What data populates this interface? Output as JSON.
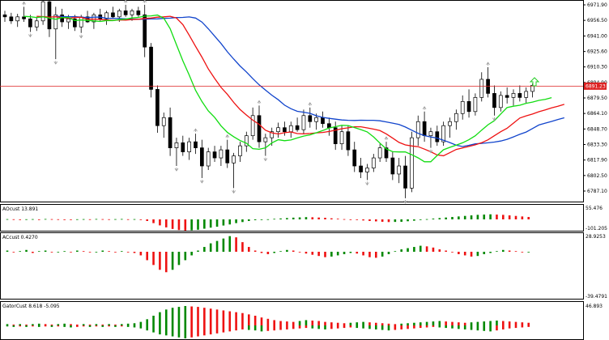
{
  "price_axis": {
    "labels": [
      "6971.90",
      "6956.50",
      "6941.00",
      "6925.60",
      "6910.30",
      "6894.90",
      "6879.50",
      "6864.10",
      "6848.70",
      "6833.30",
      "6817.90",
      "6802.50",
      "6787.10"
    ],
    "current_price": "6891.23",
    "current_price_color": "#dd2222"
  },
  "panels": {
    "ao": {
      "title": "AOcust 13.891",
      "axis_labels": [
        "55.476",
        "-101.205"
      ]
    },
    "ac": {
      "title": "ACcust 0.4270",
      "axis_labels": [
        "28.9253",
        "-39.4791"
      ]
    },
    "gator": {
      "title": "GatorCust 8.618 -5.095",
      "axis_labels": [
        "46.893"
      ]
    }
  },
  "colors": {
    "bullish": "#008800",
    "bearish": "#ee1111",
    "jaw": "#1144cc",
    "teeth": "#ee1111",
    "lips": "#11dd11",
    "price_line": "#dd2222",
    "arrow": "#22cc22",
    "fractal": "#9a9a9a"
  },
  "icons": {
    "buy_arrow": "up-arrow-icon",
    "fractal": "fractal-icon"
  },
  "chart_data": {
    "type": "candlestick",
    "ylim": [
      6780,
      6980
    ],
    "candles": [
      [
        6962,
        6966,
        6955,
        6960
      ],
      [
        6960,
        6964,
        6953,
        6956
      ],
      [
        6956,
        6963,
        6950,
        6960
      ],
      [
        6960,
        6970,
        6955,
        6958
      ],
      [
        6958,
        6962,
        6945,
        6950
      ],
      [
        6950,
        6960,
        6946,
        6956
      ],
      [
        6956,
        6980,
        6952,
        6975
      ],
      [
        6975,
        6980,
        6940,
        6948
      ],
      [
        6948,
        6970,
        6918,
        6962
      ],
      [
        6962,
        6968,
        6950,
        6955
      ],
      [
        6955,
        6962,
        6948,
        6958
      ],
      [
        6958,
        6962,
        6946,
        6950
      ],
      [
        6950,
        6962,
        6944,
        6960
      ],
      [
        6960,
        6966,
        6954,
        6955
      ],
      [
        6955,
        6964,
        6948,
        6962
      ],
      [
        6962,
        6968,
        6955,
        6958
      ],
      [
        6958,
        6966,
        6952,
        6964
      ],
      [
        6964,
        6970,
        6958,
        6960
      ],
      [
        6960,
        6968,
        6955,
        6966
      ],
      [
        6966,
        6972,
        6960,
        6962
      ],
      [
        6962,
        6968,
        6956,
        6966
      ],
      [
        6966,
        6970,
        6960,
        6962
      ],
      [
        6962,
        6972,
        6920,
        6930
      ],
      [
        6930,
        6934,
        6880,
        6888
      ],
      [
        6888,
        6892,
        6845,
        6852
      ],
      [
        6852,
        6865,
        6840,
        6860
      ],
      [
        6860,
        6870,
        6822,
        6830
      ],
      [
        6830,
        6840,
        6812,
        6835
      ],
      [
        6835,
        6842,
        6822,
        6826
      ],
      [
        6826,
        6840,
        6818,
        6836
      ],
      [
        6836,
        6844,
        6824,
        6830
      ],
      [
        6830,
        6838,
        6800,
        6812
      ],
      [
        6812,
        6830,
        6808,
        6826
      ],
      [
        6826,
        6832,
        6816,
        6820
      ],
      [
        6820,
        6832,
        6812,
        6828
      ],
      [
        6828,
        6838,
        6810,
        6815
      ],
      [
        6815,
        6825,
        6790,
        6822
      ],
      [
        6822,
        6836,
        6816,
        6832
      ],
      [
        6832,
        6846,
        6826,
        6842
      ],
      [
        6842,
        6870,
        6838,
        6862
      ],
      [
        6862,
        6872,
        6830,
        6836
      ],
      [
        6836,
        6844,
        6822,
        6840
      ],
      [
        6840,
        6850,
        6832,
        6846
      ],
      [
        6846,
        6855,
        6840,
        6850
      ],
      [
        6850,
        6856,
        6842,
        6846
      ],
      [
        6846,
        6856,
        6840,
        6852
      ],
      [
        6852,
        6860,
        6846,
        6848
      ],
      [
        6848,
        6868,
        6844,
        6862
      ],
      [
        6862,
        6870,
        6850,
        6856
      ],
      [
        6856,
        6864,
        6848,
        6860
      ],
      [
        6860,
        6866,
        6850,
        6854
      ],
      [
        6854,
        6860,
        6842,
        6850
      ],
      [
        6850,
        6856,
        6828,
        6834
      ],
      [
        6834,
        6852,
        6828,
        6846
      ],
      [
        6846,
        6852,
        6822,
        6828
      ],
      [
        6828,
        6836,
        6806,
        6812
      ],
      [
        6812,
        6820,
        6800,
        6806
      ],
      [
        6806,
        6814,
        6798,
        6810
      ],
      [
        6810,
        6824,
        6806,
        6820
      ],
      [
        6820,
        6834,
        6816,
        6830
      ],
      [
        6830,
        6836,
        6816,
        6820
      ],
      [
        6820,
        6826,
        6798,
        6804
      ],
      [
        6804,
        6820,
        6795,
        6812
      ],
      [
        6812,
        6822,
        6780,
        6790
      ],
      [
        6790,
        6846,
        6786,
        6840
      ],
      [
        6840,
        6862,
        6832,
        6856
      ],
      [
        6856,
        6866,
        6836,
        6842
      ],
      [
        6842,
        6850,
        6830,
        6846
      ],
      [
        6846,
        6852,
        6832,
        6836
      ],
      [
        6836,
        6856,
        6832,
        6852
      ],
      [
        6852,
        6860,
        6840,
        6856
      ],
      [
        6856,
        6868,
        6848,
        6864
      ],
      [
        6864,
        6882,
        6858,
        6876
      ],
      [
        6876,
        6888,
        6860,
        6866
      ],
      [
        6866,
        6884,
        6862,
        6880
      ],
      [
        6880,
        6905,
        6876,
        6898
      ],
      [
        6898,
        6910,
        6880,
        6884
      ],
      [
        6884,
        6892,
        6862,
        6870
      ],
      [
        6870,
        6886,
        6866,
        6882
      ],
      [
        6882,
        6890,
        6874,
        6880
      ],
      [
        6880,
        6888,
        6872,
        6884
      ],
      [
        6884,
        6892,
        6876,
        6880
      ],
      [
        6880,
        6890,
        6874,
        6886
      ],
      [
        6886,
        6894,
        6880,
        6892
      ]
    ],
    "ao_values": [
      2,
      1,
      0,
      1,
      2,
      0,
      3,
      2,
      1,
      0,
      -1,
      1,
      2,
      1,
      3,
      2,
      1,
      2,
      3,
      1,
      2,
      -4,
      -12,
      -28,
      -45,
      -60,
      -72,
      -80,
      -84,
      -82,
      -78,
      -70,
      -62,
      -55,
      -46,
      -38,
      -28,
      -20,
      -12,
      -6,
      -2,
      1,
      4,
      7,
      10,
      13,
      15,
      17,
      16,
      14,
      12,
      8,
      5,
      2,
      -1,
      -4,
      -8,
      -12,
      -15,
      -18,
      -20,
      -19,
      -18,
      -14,
      -10,
      -4,
      2,
      6,
      10,
      14,
      18,
      22,
      26,
      30,
      34,
      36,
      38,
      36,
      34,
      30,
      26,
      22,
      18,
      14
    ],
    "ac_values": [
      2,
      -1,
      1,
      3,
      -2,
      1,
      2,
      -1,
      0,
      1,
      -1,
      2,
      1,
      -1,
      0,
      2,
      1,
      -1,
      1,
      0,
      -2,
      -6,
      -14,
      -22,
      -30,
      -34,
      -30,
      -22,
      -14,
      -6,
      2,
      8,
      14,
      18,
      22,
      26,
      24,
      16,
      8,
      2,
      -2,
      -4,
      -2,
      1,
      3,
      2,
      -1,
      -3,
      -5,
      -7,
      -9,
      -8,
      -6,
      -4,
      -2,
      -3,
      -6,
      -9,
      -10,
      -8,
      -4,
      1,
      4,
      6,
      8,
      10,
      9,
      7,
      4,
      2,
      -1,
      -4,
      -6,
      -8,
      -7,
      -4,
      -2,
      1,
      3,
      2,
      1,
      -1,
      0,
      1
    ],
    "gator_upper": [
      3,
      2,
      3,
      2,
      3,
      4,
      3,
      2,
      3,
      4,
      3,
      2,
      3,
      2,
      3,
      2,
      3,
      2,
      3,
      4,
      5,
      8,
      14,
      22,
      30,
      36,
      40,
      42,
      44,
      43,
      42,
      40,
      38,
      36,
      34,
      32,
      30,
      28,
      25,
      22,
      18,
      15,
      12,
      10,
      9,
      8,
      10,
      12,
      11,
      10,
      8,
      7,
      6,
      5,
      6,
      7,
      8,
      7,
      6,
      5,
      4,
      3,
      4,
      5,
      6,
      7,
      8,
      9,
      10,
      9,
      8,
      7,
      6,
      7,
      8,
      9,
      10,
      11,
      10,
      9,
      8,
      7,
      6,
      5
    ],
    "gator_lower": [
      -2,
      -3,
      -2,
      -3,
      -2,
      -3,
      -2,
      -3,
      -2,
      -3,
      -4,
      -3,
      -2,
      -3,
      -2,
      -3,
      -2,
      -3,
      -2,
      -3,
      -4,
      -6,
      -10,
      -14,
      -18,
      -20,
      -22,
      -24,
      -26,
      -24,
      -22,
      -20,
      -18,
      -16,
      -14,
      -12,
      -10,
      -8,
      -9,
      -10,
      -12,
      -11,
      -10,
      -9,
      -8,
      -7,
      -6,
      -5,
      -6,
      -7,
      -8,
      -7,
      -6,
      -5,
      -4,
      -5,
      -6,
      -7,
      -8,
      -9,
      -10,
      -9,
      -8,
      -7,
      -6,
      -5,
      -4,
      -3,
      -4,
      -5,
      -6,
      -7,
      -8,
      -9,
      -10,
      -11,
      -12,
      -10,
      -8,
      -6,
      -5,
      -4,
      -3,
      -2
    ]
  }
}
